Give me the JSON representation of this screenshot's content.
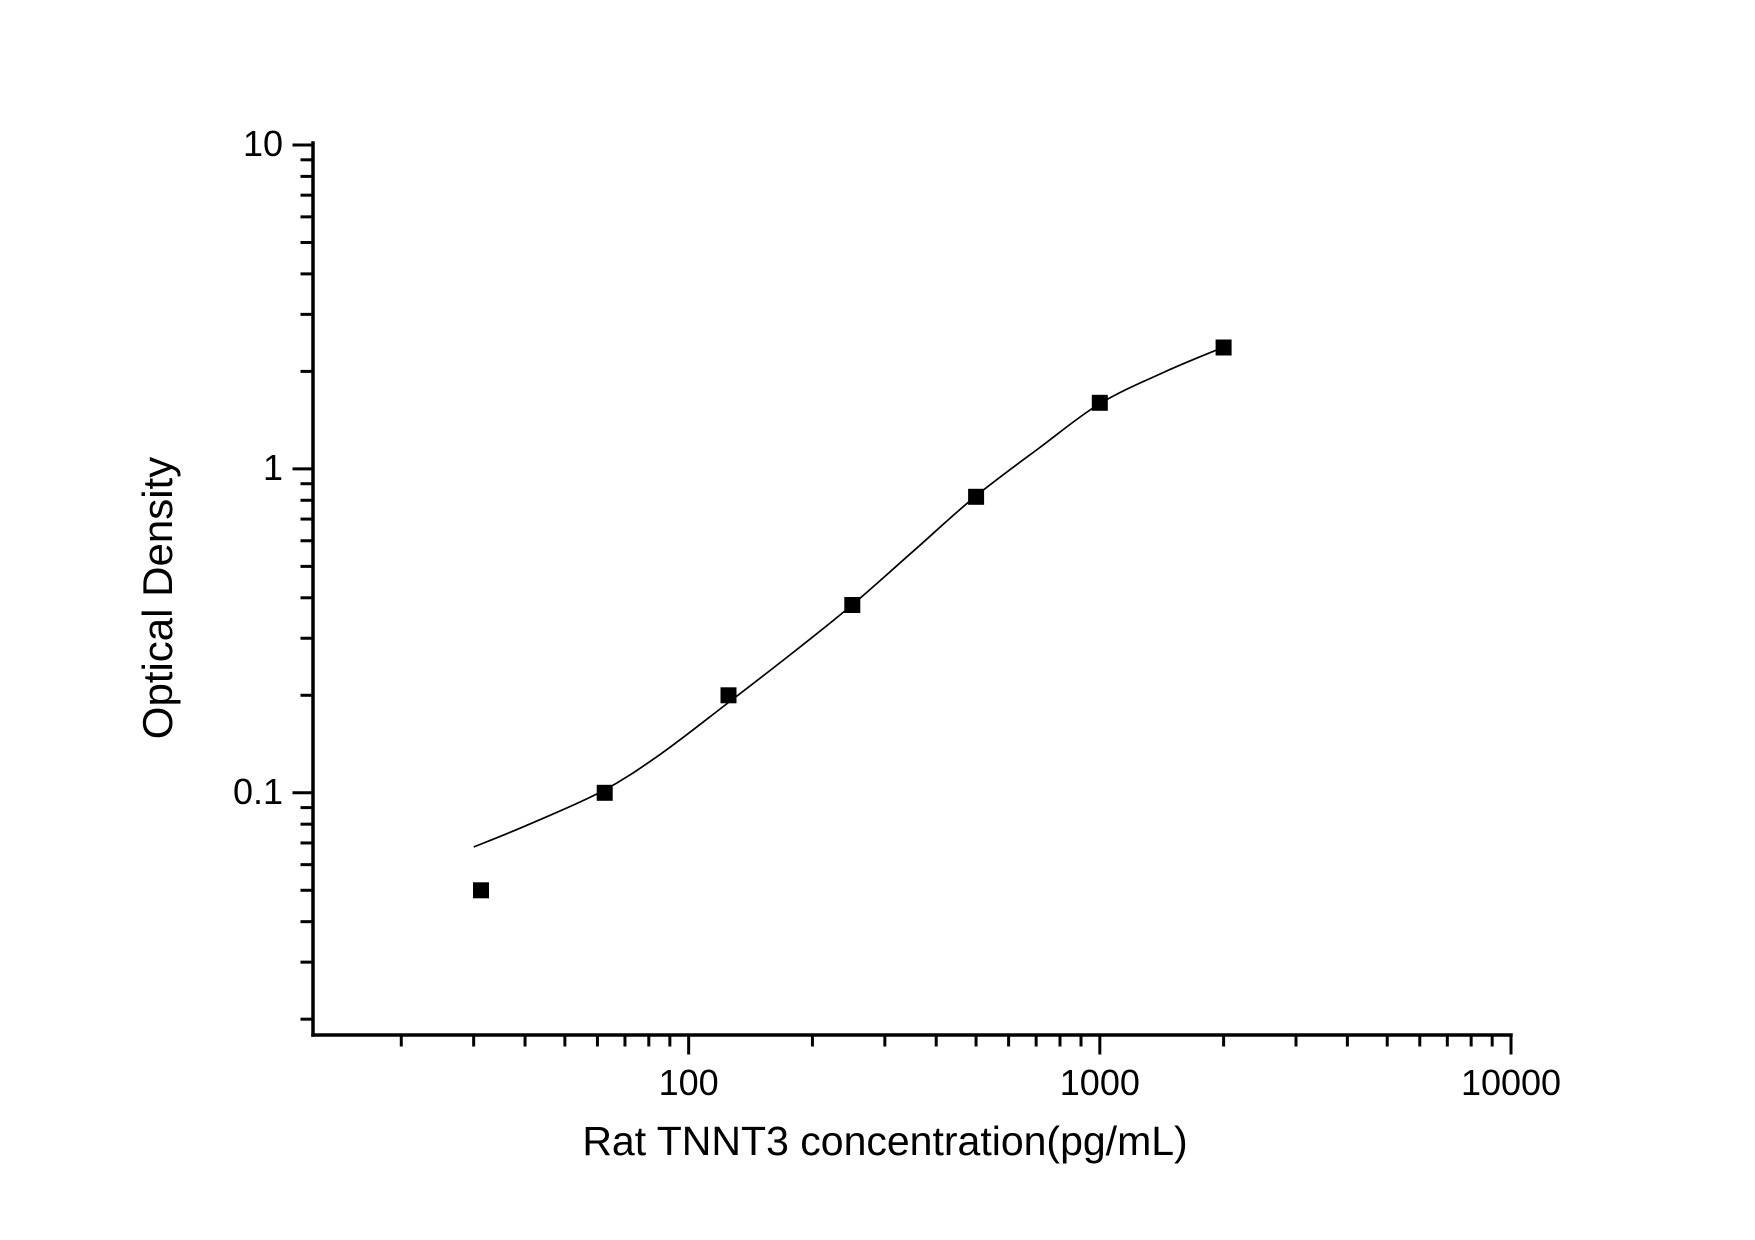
{
  "figure": {
    "background_color": "#ffffff",
    "foreground_color": "#000000"
  },
  "chart_data": {
    "type": "scatter",
    "title": "",
    "xlabel": "Rat TNNT3 concentration(pg/mL)",
    "ylabel": "Optical Density",
    "xscale": "log",
    "yscale": "log",
    "xlim": [
      12.2,
      10000
    ],
    "ylim": [
      0.018,
      10
    ],
    "grid": false,
    "legend_position": "none",
    "x_major_ticks": [
      {
        "value": 100,
        "label": "100"
      },
      {
        "value": 1000,
        "label": "1000"
      },
      {
        "value": 10000,
        "label": "10000"
      }
    ],
    "x_minor_ticks": [
      20,
      30,
      40,
      50,
      60,
      70,
      80,
      90,
      200,
      300,
      400,
      500,
      600,
      700,
      800,
      900,
      2000,
      3000,
      4000,
      5000,
      6000,
      7000,
      8000,
      9000
    ],
    "y_major_ticks": [
      {
        "value": 10,
        "label": "10"
      },
      {
        "value": 1,
        "label": "1"
      },
      {
        "value": 0.1,
        "label": "0.1"
      }
    ],
    "y_minor_ticks": [
      9,
      8,
      7,
      6,
      5,
      4,
      3,
      2,
      0.9,
      0.8,
      0.7,
      0.6,
      0.5,
      0.4,
      0.3,
      0.2,
      0.09,
      0.08,
      0.07,
      0.06,
      0.05,
      0.04,
      0.03,
      0.02
    ],
    "series": [
      {
        "name": "standard-points",
        "kind": "scatter",
        "marker": "filled-square",
        "color": "#000000",
        "points": [
          {
            "x": 31.25,
            "y": 0.05
          },
          {
            "x": 62.5,
            "y": 0.1
          },
          {
            "x": 125,
            "y": 0.2
          },
          {
            "x": 250,
            "y": 0.38
          },
          {
            "x": 500,
            "y": 0.82
          },
          {
            "x": 1000,
            "y": 1.6
          },
          {
            "x": 2000,
            "y": 2.37
          }
        ]
      },
      {
        "name": "fit-curve",
        "kind": "line",
        "color": "#000000",
        "points": [
          {
            "x": 30,
            "y": 0.068
          },
          {
            "x": 41,
            "y": 0.08
          },
          {
            "x": 61.5,
            "y": 0.101
          },
          {
            "x": 85,
            "y": 0.131
          },
          {
            "x": 125,
            "y": 0.19
          },
          {
            "x": 182,
            "y": 0.275
          },
          {
            "x": 249,
            "y": 0.379
          },
          {
            "x": 354,
            "y": 0.561
          },
          {
            "x": 495,
            "y": 0.817
          },
          {
            "x": 712,
            "y": 1.16
          },
          {
            "x": 1000,
            "y": 1.59
          },
          {
            "x": 1434,
            "y": 1.99
          },
          {
            "x": 1990,
            "y": 2.37
          }
        ]
      }
    ]
  }
}
